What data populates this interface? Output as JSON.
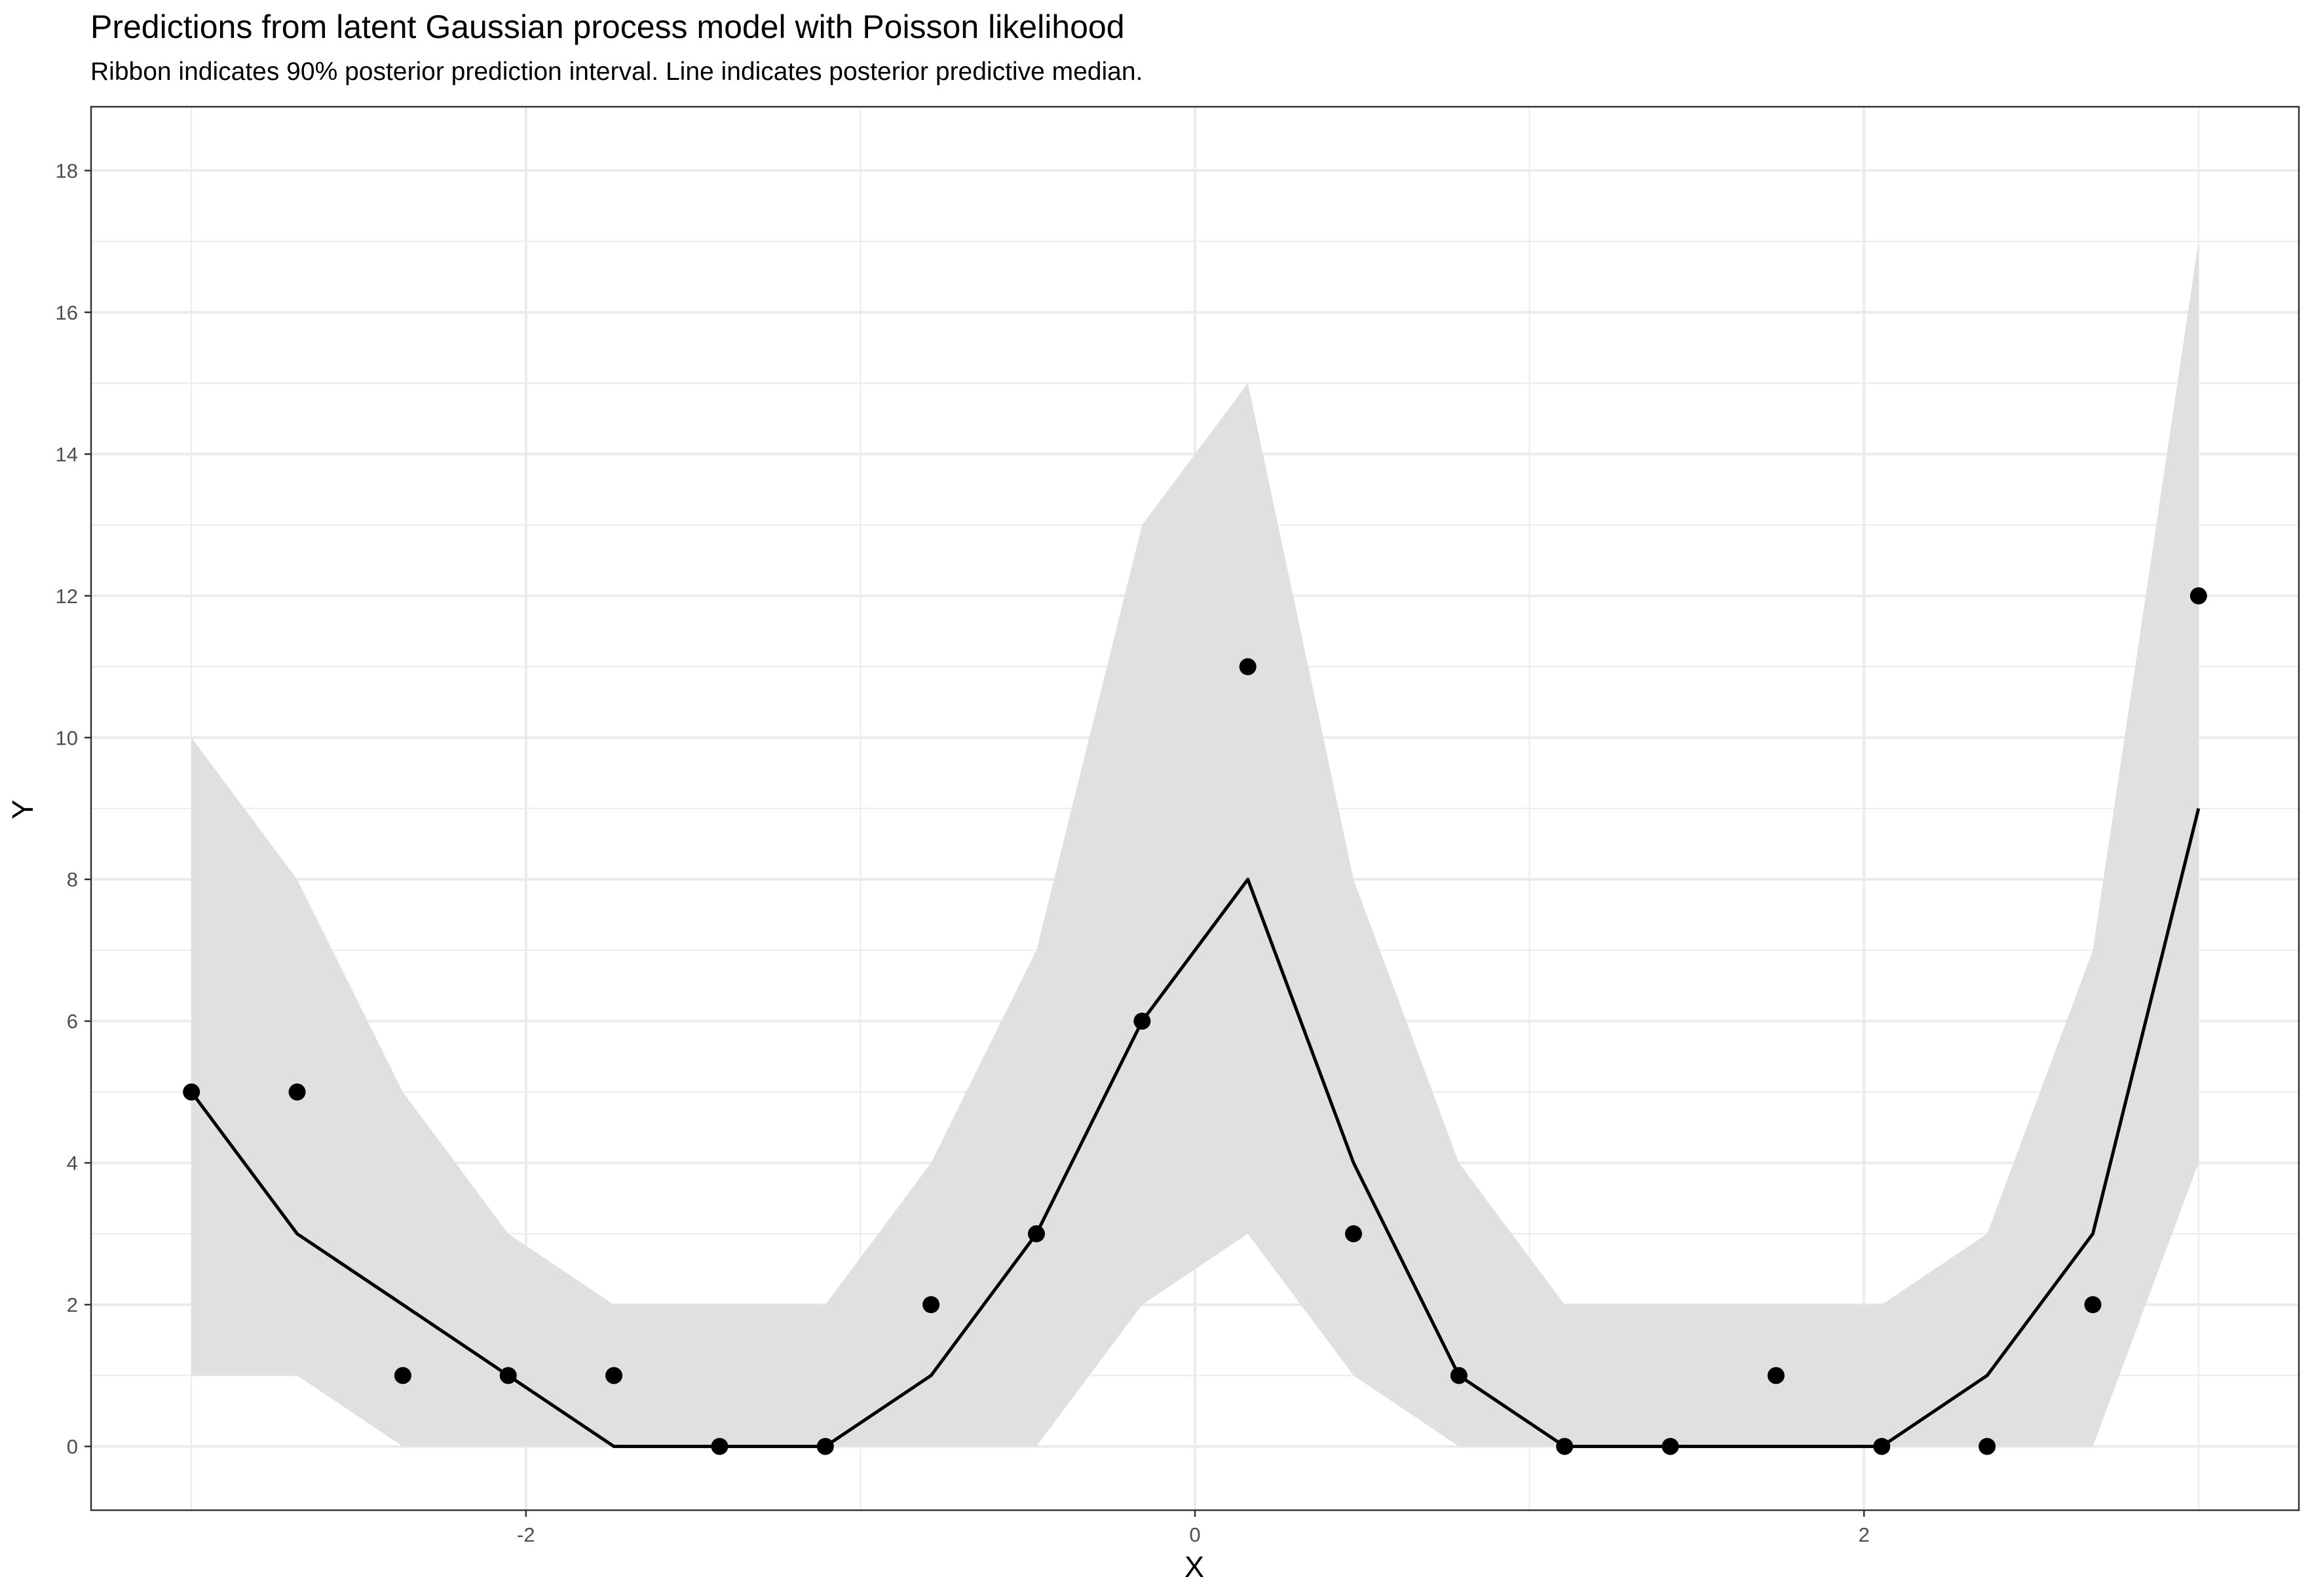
{
  "chart_data": {
    "type": "line",
    "title": "Predictions from latent Gaussian process model with Poisson likelihood",
    "subtitle": "Ribbon indicates 90% posterior prediction interval. Line indicates posterior predictive median.",
    "xlabel": "X",
    "ylabel": "Y",
    "xlim": [
      -3.3,
      3.3
    ],
    "ylim": [
      -0.9,
      18.9
    ],
    "x_ticks": [
      -2,
      0,
      2
    ],
    "y_ticks": [
      0,
      2,
      4,
      6,
      8,
      10,
      12,
      14,
      16,
      18
    ],
    "grid": true,
    "legend": "none",
    "x": [
      -3.0,
      -2.684,
      -2.368,
      -2.053,
      -1.737,
      -1.421,
      -1.105,
      -0.789,
      -0.474,
      -0.158,
      0.158,
      0.474,
      0.789,
      1.105,
      1.421,
      1.737,
      2.053,
      2.368,
      2.684,
      3.0
    ],
    "series": [
      {
        "role": "ribbon_lower",
        "values": [
          1,
          1,
          0,
          0,
          0,
          0,
          0,
          0,
          0,
          2,
          3,
          1,
          0,
          0,
          0,
          0,
          0,
          0,
          0,
          4
        ]
      },
      {
        "role": "ribbon_upper",
        "values": [
          10,
          8,
          5,
          3,
          2,
          2,
          2,
          4,
          7,
          13,
          15,
          8,
          4,
          2,
          2,
          2,
          2,
          3,
          7,
          17
        ]
      },
      {
        "role": "median",
        "values": [
          5,
          3,
          2,
          1,
          0,
          0,
          0,
          1,
          3,
          6,
          8,
          4,
          1,
          0,
          0,
          0,
          0,
          1,
          3,
          9
        ]
      },
      {
        "role": "observed",
        "values": [
          5,
          5,
          1,
          1,
          1,
          0,
          0,
          2,
          3,
          6,
          11,
          3,
          1,
          0,
          0,
          1,
          0,
          0,
          2,
          12
        ]
      }
    ],
    "colors": {
      "ribbon": "#e0e0e0",
      "line": "#000000",
      "points": "#000000",
      "grid": "#ebebeb",
      "panel_border": "#333333",
      "tick_text": "#4d4d4d"
    }
  }
}
